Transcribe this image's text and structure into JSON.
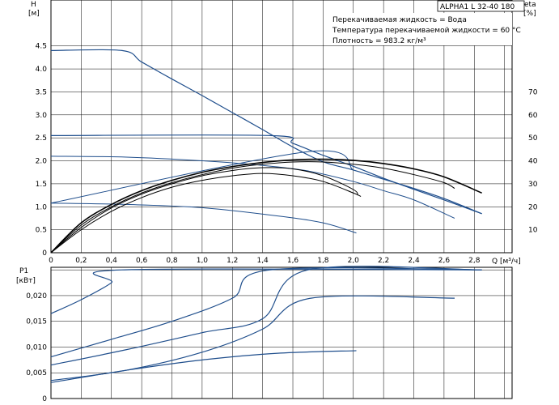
{
  "header": {
    "model_box": "ALPHA1 L 32-40   180",
    "liquid": "Перекачиваемая жидкость = Вода",
    "temperature": "Температура перекачиваемой жидкости = 60 °C",
    "density": "Плотность = 983.2 кг/м³"
  },
  "colors": {
    "curve_blue": "#1f4e8c",
    "curve_black": "#000000"
  },
  "chart_data": [
    {
      "type": "line",
      "name": "head-efficiency",
      "xlabel": "Q [м³/ч]",
      "ylabel_line1": "H",
      "ylabel_line2": "[м]",
      "y2label_line1": "eta",
      "y2label_line2": "[%]",
      "xlim": [
        0,
        3.05
      ],
      "ylim": [
        0,
        5.5
      ],
      "y2lim": [
        0,
        110
      ],
      "x_ticks": [
        "0",
        "0,2",
        "0,4",
        "0,6",
        "0,8",
        "1,0",
        "1,2",
        "1,4",
        "1,6",
        "1,8",
        "2,0",
        "2,2",
        "2,4",
        "2,6",
        "2,8"
      ],
      "x_tick_values": [
        0,
        0.2,
        0.4,
        0.6,
        0.8,
        1.0,
        1.2,
        1.4,
        1.6,
        1.8,
        2.0,
        2.2,
        2.4,
        2.6,
        2.8
      ],
      "y_ticks": [
        "0",
        "0.5",
        "1.0",
        "1.5",
        "2.0",
        "2.5",
        "3.0",
        "3.5",
        "4.0",
        "4.5"
      ],
      "y_tick_values": [
        0,
        0.5,
        1.0,
        1.5,
        2.0,
        2.5,
        3.0,
        3.5,
        4.0,
        4.5
      ],
      "y2_ticks": [
        "10",
        "20",
        "30",
        "40",
        "50",
        "60",
        "70"
      ],
      "y2_tick_values": [
        10,
        20,
        30,
        40,
        50,
        60,
        70
      ],
      "grid": true,
      "series": [
        {
          "axis": "left",
          "color": "blue",
          "width": 1.2,
          "points": [
            [
              0,
              4.4
            ],
            [
              0.47,
              4.4
            ],
            [
              0.6,
              4.15
            ],
            [
              0.8,
              3.78
            ],
            [
              1.0,
              3.42
            ],
            [
              1.2,
              3.05
            ],
            [
              1.4,
              2.68
            ],
            [
              1.6,
              2.3
            ],
            [
              1.8,
              1.98
            ],
            [
              2.0,
              1.8
            ],
            [
              2.2,
              1.6
            ],
            [
              2.4,
              1.4
            ],
            [
              2.6,
              1.18
            ],
            [
              2.85,
              0.85
            ]
          ]
        },
        {
          "axis": "left",
          "color": "blue",
          "width": 1.2,
          "points": [
            [
              0,
              2.55
            ],
            [
              1.45,
              2.55
            ],
            [
              1.6,
              2.38
            ],
            [
              1.8,
              2.12
            ],
            [
              2.0,
              1.88
            ],
            [
              2.2,
              1.62
            ],
            [
              2.4,
              1.38
            ],
            [
              2.6,
              1.15
            ],
            [
              2.85,
              0.85
            ]
          ]
        },
        {
          "axis": "left",
          "color": "blue",
          "width": 1.0,
          "points": [
            [
              0,
              2.1
            ],
            [
              0.5,
              2.08
            ],
            [
              1.0,
              2.0
            ],
            [
              1.4,
              1.9
            ],
            [
              1.7,
              1.78
            ],
            [
              2.0,
              1.55
            ],
            [
              2.2,
              1.35
            ],
            [
              2.4,
              1.15
            ],
            [
              2.67,
              0.75
            ]
          ]
        },
        {
          "axis": "left",
          "color": "blue",
          "width": 1.0,
          "points": [
            [
              0,
              1.08
            ],
            [
              0.5,
              1.05
            ],
            [
              1.0,
              0.98
            ],
            [
              1.5,
              0.8
            ],
            [
              1.8,
              0.65
            ],
            [
              2.02,
              0.43
            ]
          ]
        },
        {
          "axis": "left",
          "color": "blue",
          "width": 1.0,
          "points": [
            [
              0,
              1.08
            ],
            [
              1.7,
              2.2
            ],
            [
              2.0,
              1.8
            ]
          ]
        },
        {
          "axis": "right",
          "color": "black",
          "width": 1.6,
          "points": [
            [
              0,
              0
            ],
            [
              0.2,
              13
            ],
            [
              0.4,
              21
            ],
            [
              0.6,
              27
            ],
            [
              0.8,
              31.5
            ],
            [
              1.0,
              35
            ],
            [
              1.2,
              37.5
            ],
            [
              1.4,
              39.3
            ],
            [
              1.6,
              40.4
            ],
            [
              1.8,
              40.7
            ],
            [
              2.0,
              40.2
            ],
            [
              2.2,
              38.8
            ],
            [
              2.4,
              36.5
            ],
            [
              2.6,
              33
            ],
            [
              2.85,
              26
            ]
          ]
        },
        {
          "axis": "right",
          "color": "black",
          "width": 1.0,
          "points": [
            [
              0,
              0
            ],
            [
              0.2,
              12
            ],
            [
              0.4,
              20
            ],
            [
              0.6,
              26
            ],
            [
              0.8,
              30.5
            ],
            [
              1.0,
              34
            ],
            [
              1.2,
              36.8
            ],
            [
              1.4,
              38.5
            ],
            [
              1.6,
              39.5
            ],
            [
              1.8,
              39.5
            ],
            [
              2.0,
              38.5
            ],
            [
              2.2,
              36.8
            ],
            [
              2.4,
              34
            ],
            [
              2.6,
              30.5
            ],
            [
              2.67,
              28
            ]
          ]
        },
        {
          "axis": "right",
          "color": "black",
          "width": 1.0,
          "points": [
            [
              0,
              0
            ],
            [
              0.2,
              11
            ],
            [
              0.4,
              19.5
            ],
            [
              0.6,
              25.5
            ],
            [
              0.8,
              30
            ],
            [
              1.0,
              33.5
            ],
            [
              1.2,
              35.8
            ],
            [
              1.4,
              37
            ],
            [
              1.6,
              36.5
            ],
            [
              1.8,
              33.5
            ],
            [
              2.0,
              27.5
            ],
            [
              2.03,
              25
            ]
          ]
        },
        {
          "axis": "right",
          "color": "black",
          "width": 1.0,
          "points": [
            [
              0,
              0
            ],
            [
              0.2,
              10
            ],
            [
              0.4,
              18
            ],
            [
              0.6,
              24
            ],
            [
              0.8,
              28.5
            ],
            [
              1.0,
              31.5
            ],
            [
              1.2,
              33.5
            ],
            [
              1.4,
              34.5
            ],
            [
              1.6,
              33.5
            ],
            [
              1.8,
              31
            ],
            [
              2.0,
              26
            ],
            [
              2.05,
              24.5
            ]
          ]
        }
      ]
    },
    {
      "type": "line",
      "name": "power",
      "ylabel_line1": "P1",
      "ylabel_line2": "[кВт]",
      "xlim": [
        0,
        3.05
      ],
      "ylim": [
        0,
        0.0255
      ],
      "y_ticks": [
        "0",
        "0,005",
        "0,010",
        "0,015",
        "0,020"
      ],
      "y_tick_values": [
        0,
        0.005,
        0.01,
        0.015,
        0.02
      ],
      "grid": true,
      "series": [
        {
          "color": "blue",
          "points": [
            [
              0,
              0.0165
            ],
            [
              0.2,
              0.0192
            ],
            [
              0.4,
              0.0225
            ],
            [
              0.47,
              0.025
            ],
            [
              2.85,
              0.025
            ]
          ]
        },
        {
          "color": "blue",
          "points": [
            [
              0,
              0.0081
            ],
            [
              0.4,
              0.0115
            ],
            [
              0.8,
              0.015
            ],
            [
              1.2,
              0.0195
            ],
            [
              1.45,
              0.025
            ],
            [
              2.85,
              0.025
            ]
          ]
        },
        {
          "color": "blue",
          "points": [
            [
              0,
              0.0065
            ],
            [
              0.5,
              0.0095
            ],
            [
              1.0,
              0.0128
            ],
            [
              1.4,
              0.0155
            ],
            [
              1.7,
              0.025
            ],
            [
              2.85,
              0.025
            ]
          ]
        },
        {
          "color": "blue",
          "points": [
            [
              0,
              0.0035
            ],
            [
              0.5,
              0.0055
            ],
            [
              1.0,
              0.009
            ],
            [
              1.4,
              0.0135
            ],
            [
              1.72,
              0.0195
            ],
            [
              2.67,
              0.0195
            ]
          ]
        },
        {
          "color": "blue",
          "points": [
            [
              0,
              0.0031
            ],
            [
              0.5,
              0.0055
            ],
            [
              1.0,
              0.0075
            ],
            [
              1.5,
              0.0088
            ],
            [
              2.02,
              0.0093
            ]
          ]
        }
      ]
    }
  ]
}
